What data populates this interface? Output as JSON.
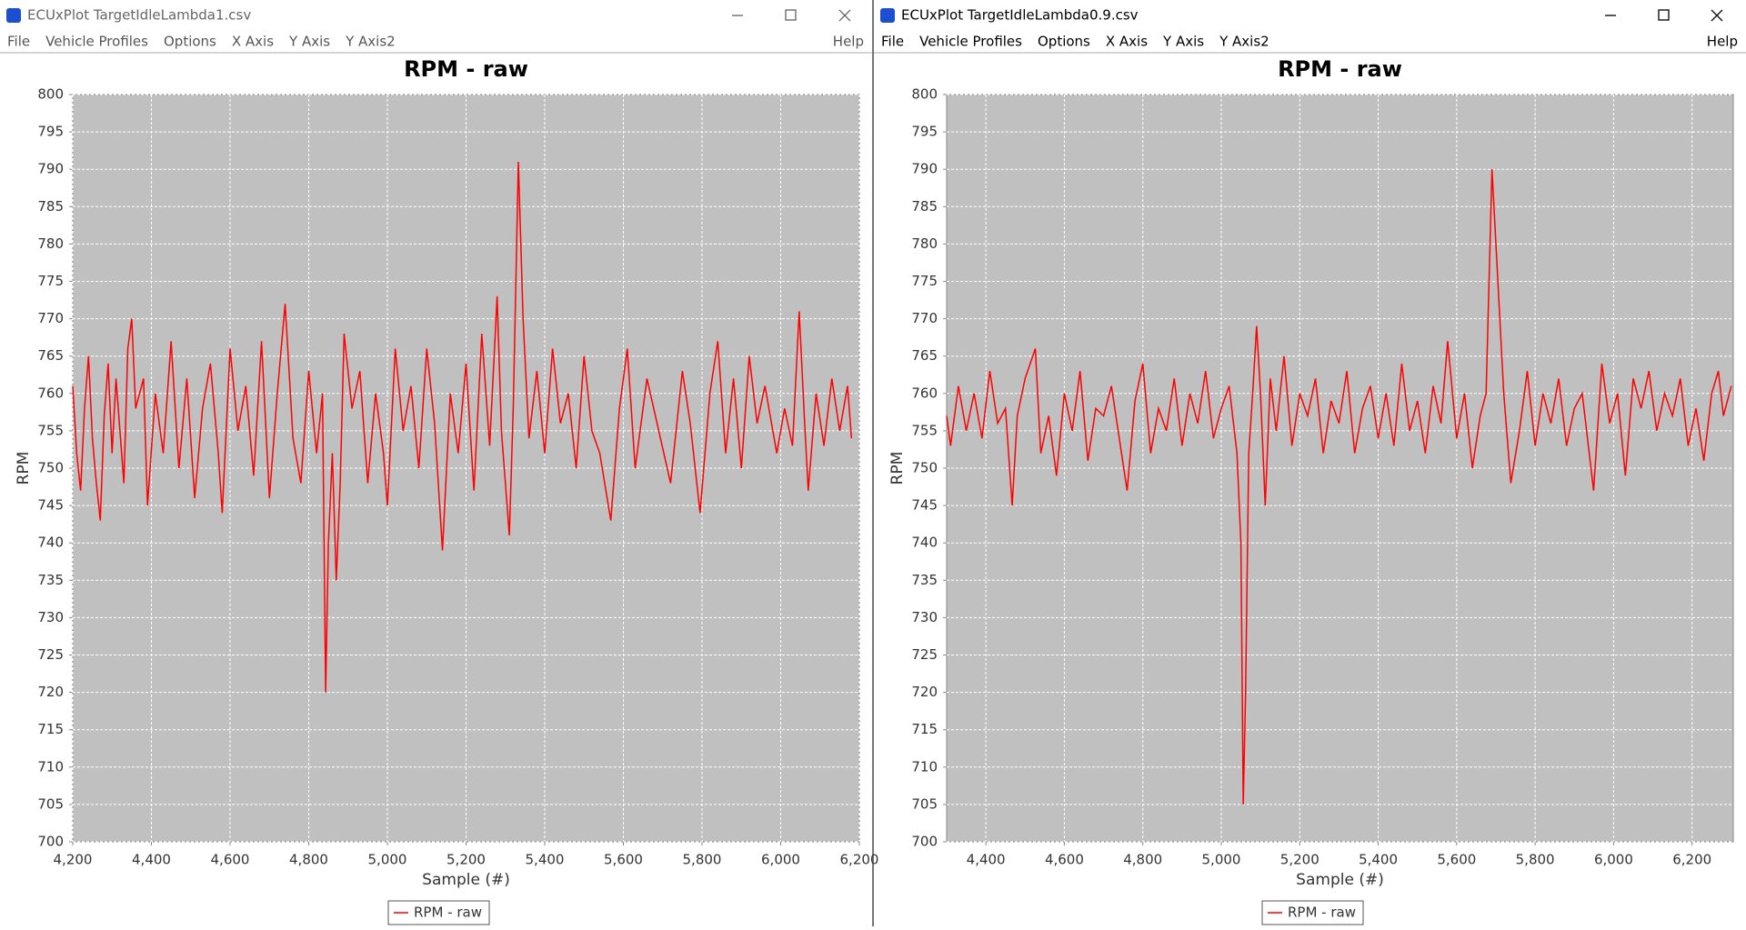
{
  "windows": [
    {
      "title": "ECUxPlot TargetIdleLambda1.csv",
      "menu": [
        "File",
        "Vehicle Profiles",
        "Options",
        "X Axis",
        "Y Axis",
        "Y Axis2"
      ],
      "help": "Help"
    },
    {
      "title": "ECUxPlot TargetIdleLambda0.9.csv",
      "menu": [
        "File",
        "Vehicle Profiles",
        "Options",
        "X Axis",
        "Y Axis",
        "Y Axis2"
      ],
      "help": "Help"
    }
  ],
  "chart_data": [
    {
      "type": "line",
      "title": "RPM - raw",
      "x_label": "Sample (#)",
      "y_label": "RPM",
      "grid": true,
      "legend": "bottom",
      "xlim": [
        4200,
        6200
      ],
      "xticks": [
        {
          "value": 4200,
          "label": "4,200"
        },
        {
          "value": 4400,
          "label": "4,400"
        },
        {
          "value": 4600,
          "label": "4,600"
        },
        {
          "value": 4800,
          "label": "4,800"
        },
        {
          "value": 5000,
          "label": "5,000"
        },
        {
          "value": 5200,
          "label": "5,200"
        },
        {
          "value": 5400,
          "label": "5,400"
        },
        {
          "value": 5600,
          "label": "5,600"
        },
        {
          "value": 5800,
          "label": "5,800"
        },
        {
          "value": 6000,
          "label": "6,000"
        },
        {
          "value": 6200,
          "label": "6,200"
        }
      ],
      "ylim": [
        700,
        800
      ],
      "yticks": [
        700,
        705,
        710,
        715,
        720,
        725,
        730,
        735,
        740,
        745,
        750,
        755,
        760,
        765,
        770,
        775,
        780,
        785,
        790,
        795,
        800
      ],
      "x": [
        4200,
        4210,
        4220,
        4230,
        4240,
        4250,
        4260,
        4270,
        4280,
        4290,
        4300,
        4310,
        4320,
        4330,
        4340,
        4350,
        4360,
        4380,
        4390,
        4410,
        4430,
        4450,
        4470,
        4490,
        4510,
        4530,
        4550,
        4570,
        4580,
        4600,
        4620,
        4640,
        4660,
        4680,
        4700,
        4720,
        4740,
        4760,
        4780,
        4800,
        4820,
        4835,
        4843,
        4850,
        4860,
        4870,
        4880,
        4890,
        4910,
        4930,
        4950,
        4970,
        4990,
        5000,
        5020,
        5040,
        5060,
        5080,
        5100,
        5120,
        5140,
        5160,
        5180,
        5200,
        5220,
        5240,
        5260,
        5279,
        5290,
        5310,
        5320,
        5333,
        5345,
        5360,
        5380,
        5400,
        5420,
        5440,
        5460,
        5480,
        5500,
        5520,
        5540,
        5568,
        5590,
        5610,
        5630,
        5660,
        5690,
        5720,
        5750,
        5770,
        5795,
        5820,
        5840,
        5860,
        5880,
        5900,
        5920,
        5940,
        5960,
        5990,
        6010,
        6030,
        6047,
        6060,
        6070,
        6090,
        6110,
        6130,
        6150,
        6170,
        6180
      ],
      "series": [
        {
          "name": "RPM - raw",
          "color": "#ff0000",
          "values": [
            761,
            752,
            747,
            758,
            765,
            754,
            748,
            743,
            757,
            764,
            752,
            762,
            755,
            748,
            766,
            770,
            758,
            762,
            745,
            760,
            752,
            767,
            750,
            762,
            746,
            758,
            764,
            752,
            744,
            766,
            755,
            761,
            749,
            767,
            746,
            760,
            772,
            754,
            748,
            763,
            752,
            760,
            720,
            740,
            752,
            735,
            748,
            768,
            758,
            763,
            748,
            760,
            752,
            745,
            766,
            755,
            761,
            750,
            766,
            756,
            739,
            760,
            752,
            764,
            747,
            768,
            753,
            773,
            755,
            741,
            758,
            791,
            770,
            754,
            763,
            752,
            766,
            756,
            760,
            750,
            765,
            755,
            752,
            743,
            758,
            766,
            750,
            762,
            755,
            748,
            763,
            756,
            744,
            760,
            767,
            752,
            762,
            750,
            765,
            756,
            761,
            752,
            758,
            753,
            771,
            757,
            747,
            760,
            753,
            762,
            755,
            761,
            754
          ]
        }
      ]
    },
    {
      "type": "line",
      "title": "RPM - raw",
      "x_label": "Sample (#)",
      "y_label": "RPM",
      "grid": true,
      "legend": "bottom",
      "xlim": [
        4300,
        6305
      ],
      "xticks": [
        {
          "value": 4400,
          "label": "4,400"
        },
        {
          "value": 4600,
          "label": "4,600"
        },
        {
          "value": 4800,
          "label": "4,800"
        },
        {
          "value": 5000,
          "label": "5,000"
        },
        {
          "value": 5200,
          "label": "5,200"
        },
        {
          "value": 5400,
          "label": "5,400"
        },
        {
          "value": 5600,
          "label": "5,600"
        },
        {
          "value": 5800,
          "label": "5,800"
        },
        {
          "value": 6000,
          "label": "6,000"
        },
        {
          "value": 6200,
          "label": "6,200"
        }
      ],
      "ylim": [
        700,
        800
      ],
      "yticks": [
        700,
        705,
        710,
        715,
        720,
        725,
        730,
        735,
        740,
        745,
        750,
        755,
        760,
        765,
        770,
        775,
        780,
        785,
        790,
        795,
        800
      ],
      "x": [
        4300,
        4310,
        4330,
        4350,
        4370,
        4390,
        4410,
        4430,
        4450,
        4467,
        4480,
        4500,
        4526,
        4540,
        4560,
        4580,
        4600,
        4620,
        4640,
        4660,
        4680,
        4700,
        4720,
        4740,
        4760,
        4780,
        4800,
        4820,
        4840,
        4860,
        4880,
        4900,
        4920,
        4940,
        4960,
        4980,
        5000,
        5020,
        5040,
        5050,
        5056,
        5062,
        5070,
        5080,
        5090,
        5100,
        5112,
        5125,
        5140,
        5160,
        5180,
        5200,
        5220,
        5240,
        5260,
        5280,
        5300,
        5320,
        5340,
        5360,
        5380,
        5400,
        5420,
        5440,
        5460,
        5480,
        5500,
        5520,
        5540,
        5560,
        5577,
        5600,
        5620,
        5640,
        5660,
        5675,
        5690,
        5700,
        5710,
        5720,
        5738,
        5760,
        5780,
        5800,
        5820,
        5840,
        5860,
        5880,
        5900,
        5920,
        5949,
        5970,
        5990,
        6010,
        6030,
        6050,
        6070,
        6090,
        6110,
        6130,
        6150,
        6170,
        6190,
        6210,
        6230,
        6250,
        6267,
        6280,
        6300
      ],
      "series": [
        {
          "name": "RPM - raw",
          "color": "#ff0000",
          "values": [
            757,
            753,
            761,
            755,
            760,
            754,
            763,
            756,
            758,
            745,
            757,
            762,
            766,
            752,
            757,
            749,
            760,
            755,
            763,
            751,
            758,
            757,
            761,
            754,
            747,
            759,
            764,
            752,
            758,
            755,
            762,
            753,
            760,
            756,
            763,
            754,
            758,
            761,
            752,
            740,
            705,
            720,
            752,
            760,
            769,
            760,
            745,
            762,
            755,
            765,
            753,
            760,
            757,
            762,
            752,
            759,
            756,
            763,
            752,
            758,
            761,
            754,
            760,
            753,
            764,
            755,
            759,
            752,
            761,
            756,
            767,
            754,
            760,
            750,
            757,
            760,
            790,
            780,
            770,
            760,
            748,
            755,
            763,
            753,
            760,
            756,
            762,
            753,
            758,
            760,
            747,
            764,
            756,
            760,
            749,
            762,
            758,
            763,
            755,
            760,
            757,
            762,
            753,
            758,
            751,
            760,
            763,
            757,
            761
          ]
        }
      ]
    }
  ]
}
